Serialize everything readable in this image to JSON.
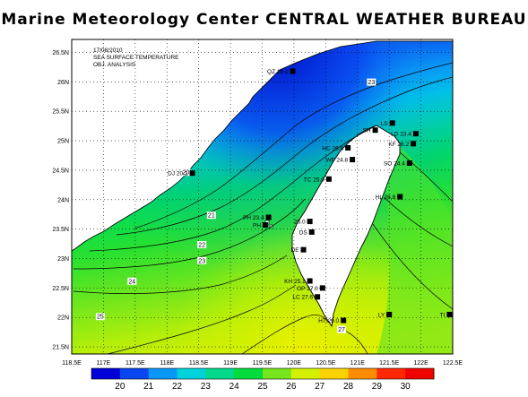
{
  "title": "Marine Meteorology Center CENTRAL WEATHER BUREAU",
  "info": {
    "date": "17/08/2010",
    "product": "SEA SURFACE TEMPERATURE",
    "analysis": "OBJ. ANALYSIS"
  },
  "axes": {
    "lon_ticks": [
      "118.5E",
      "117E",
      "117.5E",
      "118E",
      "118.5E",
      "119E",
      "119.5E",
      "120E",
      "120.5E",
      "121E",
      "121.5E",
      "122E",
      "122.5E"
    ],
    "lat_ticks": [
      "26.5N",
      "26N",
      "25.5N",
      "25N",
      "24.5N",
      "24N",
      "23.5N",
      "23N",
      "22.5N",
      "22N",
      "21.5N"
    ]
  },
  "colorbar": {
    "labels": [
      "20",
      "21",
      "22",
      "23",
      "24",
      "25",
      "26",
      "27",
      "28",
      "29",
      "30"
    ],
    "colors": [
      "#0000d8",
      "#0a46f0",
      "#0a96f5",
      "#00d2dc",
      "#00d88c",
      "#00dc3c",
      "#78e61e",
      "#d2f000",
      "#fad200",
      "#ff8c00",
      "#ff2800",
      "#f00000"
    ]
  },
  "contour_labels": [
    {
      "text": "20",
      "lon": 118.3,
      "lat": 24.45
    },
    {
      "text": "21",
      "lon": 118.7,
      "lat": 23.72
    },
    {
      "text": "22",
      "lon": 118.55,
      "lat": 23.22
    },
    {
      "text": "23",
      "lon": 118.55,
      "lat": 22.95
    },
    {
      "text": "24",
      "lon": 117.45,
      "lat": 22.6
    },
    {
      "text": "25",
      "lon": 116.95,
      "lat": 22.0
    },
    {
      "text": "27",
      "lon": 120.75,
      "lat": 21.78
    },
    {
      "text": "23",
      "lon": 121.22,
      "lat": 25.98
    }
  ],
  "stations": [
    {
      "id": "QZ",
      "value": "18.1",
      "lon": 119.98,
      "lat": 26.18
    },
    {
      "id": "LS",
      "value": "",
      "lon": 121.55,
      "lat": 25.3
    },
    {
      "id": "SH",
      "value": "",
      "lon": 121.28,
      "lat": 25.18
    },
    {
      "id": "LD",
      "value": "23.4",
      "lon": 121.92,
      "lat": 25.12
    },
    {
      "id": "KF",
      "value": "26.2",
      "lon": 121.88,
      "lat": 24.95
    },
    {
      "id": "HC",
      "value": "26.6",
      "lon": 120.85,
      "lat": 24.88
    },
    {
      "id": "SO",
      "value": "24.4",
      "lon": 121.82,
      "lat": 24.62
    },
    {
      "id": "WF",
      "value": "24.8",
      "lon": 120.92,
      "lat": 24.68
    },
    {
      "id": "DJ",
      "value": "20.1",
      "lon": 118.4,
      "lat": 24.45
    },
    {
      "id": "TC",
      "value": "25.0",
      "lon": 120.55,
      "lat": 24.35
    },
    {
      "id": "HL",
      "value": "26.8",
      "lon": 121.67,
      "lat": 24.05
    },
    {
      "id": "PH",
      "value": "23.4",
      "lon": 119.6,
      "lat": 23.7
    },
    {
      "id": "PH",
      "value": "",
      "lon": 119.55,
      "lat": 23.57
    },
    {
      "id": "",
      "value": "26.0",
      "lon": 120.25,
      "lat": 23.63
    },
    {
      "id": "DS",
      "value": "",
      "lon": 120.28,
      "lat": 23.45
    },
    {
      "id": "DE",
      "value": "",
      "lon": 120.15,
      "lat": 23.15
    },
    {
      "id": "KH",
      "value": "25.1",
      "lon": 120.25,
      "lat": 22.62
    },
    {
      "id": "OP",
      "value": "27.0",
      "lon": 120.45,
      "lat": 22.5
    },
    {
      "id": "LC",
      "value": "27.6",
      "lon": 120.37,
      "lat": 22.35
    },
    {
      "id": "HT",
      "value": "29.0",
      "lon": 120.78,
      "lat": 21.95
    },
    {
      "id": "LY",
      "value": "",
      "lon": 121.5,
      "lat": 22.05
    },
    {
      "id": "TI",
      "value": "",
      "lon": 122.45,
      "lat": 22.05
    }
  ]
}
